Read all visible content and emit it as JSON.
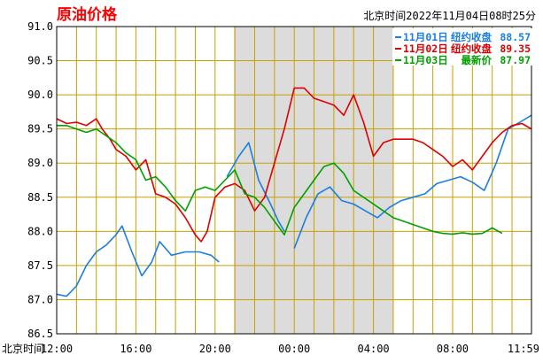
{
  "chart_data": {
    "type": "line",
    "title": "原油价格",
    "timestamp_text": "北京时间2022年11月04日08时25分",
    "xlabel": "北京时间",
    "x_tick_labels": [
      "12:00",
      "16:00",
      "20:00",
      "00:00",
      "04:00",
      "08:00",
      "11:59"
    ],
    "x_tick_hours": [
      0,
      4,
      8,
      12,
      16,
      20,
      23.983
    ],
    "x_range_hours": [
      0,
      23.983
    ],
    "y_tick_labels": [
      "91.0",
      "90.5",
      "90.0",
      "89.5",
      "89.0",
      "88.5",
      "88.0",
      "87.5",
      "87.0",
      "86.5"
    ],
    "ylim": [
      86.5,
      91.0
    ],
    "grid": true,
    "legend_position": "top-right",
    "shaded_region_hours": [
      8.95,
      17.0
    ],
    "colors": {
      "grid": "#c8a000",
      "frame": "#000000",
      "shade": "#dcdcdc",
      "title": "#ff0000",
      "series_1": "#1a7fe0",
      "series_2": "#dd0000",
      "series_3": "#00a000"
    },
    "series": [
      {
        "name": "11月01日",
        "legend_label": "收盘",
        "legend_text": "纽约收盘",
        "legend_value": "88.57",
        "color": "#1a7fe0",
        "x": [
          0.0,
          0.5,
          1.0,
          1.5,
          2.0,
          2.5,
          3.0,
          3.3,
          3.8,
          4.3,
          4.8,
          5.2,
          5.8,
          6.5,
          7.2,
          7.8,
          8.2,
          null,
          8.6,
          9.2,
          9.7,
          10.2,
          10.8,
          11.2,
          11.5,
          null,
          12.0,
          12.6,
          13.2,
          13.8,
          14.4,
          15.0,
          15.6,
          16.2,
          16.8,
          17.4,
          18.0,
          18.6,
          19.2,
          19.8,
          20.4,
          21.0,
          21.6,
          22.2,
          22.8,
          23.4,
          23.98
        ],
        "y": [
          87.08,
          87.05,
          87.2,
          87.5,
          87.7,
          87.8,
          87.95,
          88.08,
          87.7,
          87.35,
          87.55,
          87.85,
          87.65,
          87.7,
          87.7,
          87.65,
          87.55,
          null,
          88.8,
          89.1,
          89.3,
          88.75,
          88.4,
          88.15,
          88.0,
          null,
          87.75,
          88.2,
          88.55,
          88.65,
          88.45,
          88.4,
          88.3,
          88.2,
          88.35,
          88.45,
          88.5,
          88.55,
          88.7,
          88.75,
          88.8,
          88.72,
          88.6,
          89.0,
          89.5,
          89.6,
          89.7
        ]
      },
      {
        "name": "11月02日",
        "legend_label": "收盘",
        "legend_text": "纽约收盘",
        "legend_value": "89.35",
        "color": "#dd0000",
        "x": [
          0.0,
          0.5,
          1.0,
          1.5,
          2.0,
          2.3,
          2.7,
          3.0,
          3.5,
          4.0,
          4.5,
          5.0,
          5.5,
          6.0,
          6.5,
          7.0,
          7.3,
          7.6,
          8.0,
          8.5,
          9.0,
          9.5,
          10.0,
          10.5,
          11.0,
          11.5,
          12.0,
          12.5,
          13.0,
          13.5,
          14.0,
          14.5,
          15.0,
          15.5,
          16.0,
          16.5,
          17.0,
          17.5,
          18.0,
          18.5,
          19.0,
          19.5,
          20.0,
          20.5,
          21.0,
          21.5,
          22.0,
          22.5,
          23.0,
          23.5,
          23.98
        ],
        "y": [
          89.65,
          89.58,
          89.6,
          89.55,
          89.65,
          89.5,
          89.35,
          89.2,
          89.1,
          88.9,
          89.05,
          88.55,
          88.5,
          88.4,
          88.2,
          87.95,
          87.85,
          88.0,
          88.5,
          88.65,
          88.7,
          88.6,
          88.3,
          88.5,
          89.0,
          89.5,
          90.1,
          90.1,
          89.95,
          89.9,
          89.85,
          89.7,
          90.0,
          89.6,
          89.1,
          89.3,
          89.35,
          89.35,
          89.35,
          89.3,
          89.2,
          89.1,
          88.95,
          89.05,
          88.9,
          89.1,
          89.3,
          89.45,
          89.55,
          89.58,
          89.5
        ]
      },
      {
        "name": "11月03日",
        "legend_label": "最新价",
        "legend_text": "最新价",
        "legend_value": "87.97",
        "color": "#00a000",
        "x": [
          0.0,
          0.5,
          1.0,
          1.5,
          2.0,
          2.5,
          3.0,
          3.5,
          4.0,
          4.5,
          5.0,
          5.5,
          6.0,
          6.5,
          7.0,
          7.5,
          8.0,
          8.5,
          9.0,
          9.5,
          10.0,
          10.5,
          11.0,
          11.5,
          12.0,
          12.5,
          13.0,
          13.5,
          14.0,
          14.5,
          15.0,
          15.5,
          16.0,
          16.5,
          17.0,
          17.5,
          18.0,
          18.5,
          19.0,
          19.5,
          20.0,
          20.5,
          21.0,
          21.5,
          22.0,
          22.5
        ],
        "y": [
          89.55,
          89.55,
          89.5,
          89.45,
          89.5,
          89.4,
          89.3,
          89.15,
          89.05,
          88.75,
          88.8,
          88.65,
          88.45,
          88.3,
          88.6,
          88.65,
          88.6,
          88.75,
          88.9,
          88.55,
          88.5,
          88.35,
          88.15,
          87.95,
          88.35,
          88.55,
          88.75,
          88.95,
          89.0,
          88.85,
          88.6,
          88.5,
          88.4,
          88.3,
          88.2,
          88.15,
          88.1,
          88.05,
          88.0,
          87.97,
          87.96,
          87.98,
          87.96,
          87.97,
          88.05,
          87.97
        ]
      }
    ]
  }
}
